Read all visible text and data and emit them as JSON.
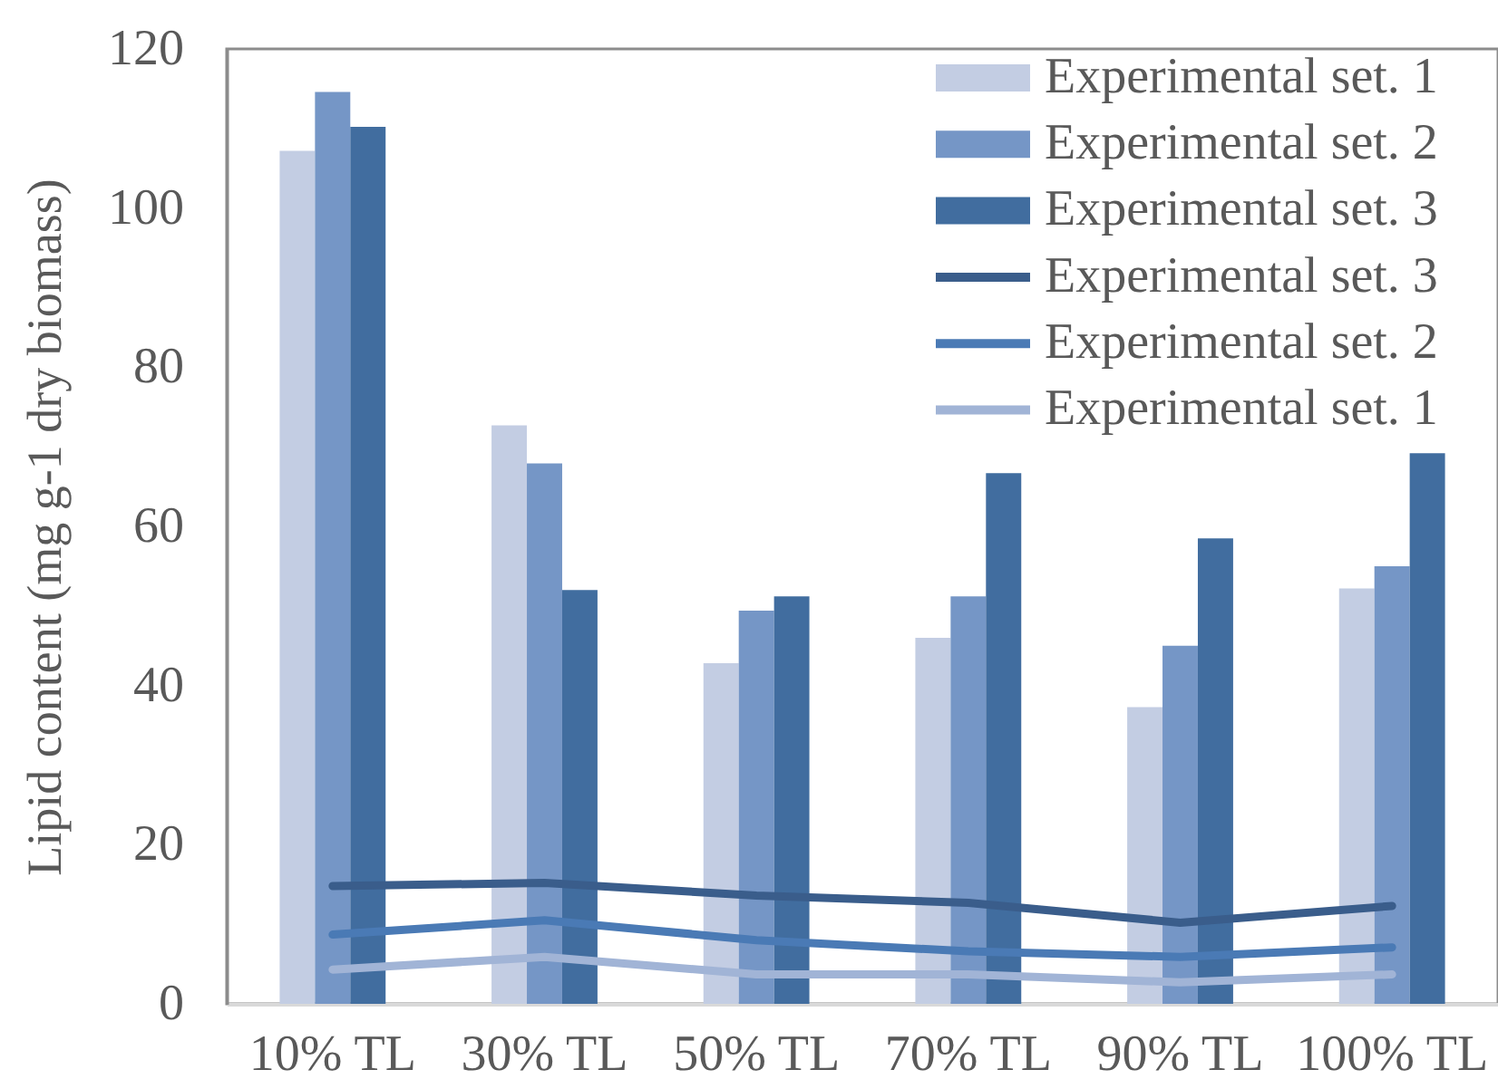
{
  "chart_data": {
    "type": "bar",
    "ylabel": "Lipid content (mg g-1 dry biomass)",
    "categories": [
      "10% TL",
      "30% TL",
      "50% TL",
      "70% TL",
      "90% TL",
      "100% TL"
    ],
    "series": [
      {
        "name": "Experimental set. 1",
        "color": "#c3cde3",
        "values": [
          107.2,
          72.7,
          42.8,
          46.0,
          37.3,
          52.2
        ]
      },
      {
        "name": "Experimental set. 2",
        "color": "#7596c6",
        "values": [
          114.6,
          67.9,
          49.4,
          51.2,
          45.0,
          55.0
        ]
      },
      {
        "name": "Experimental set. 3",
        "color": "#416d9f",
        "values": [
          110.2,
          52.0,
          51.2,
          66.7,
          58.5,
          69.2
        ]
      },
      {
        "type": "line",
        "name": "Experimental set. 3",
        "color": "#3a5d8b",
        "values": [
          14.8,
          15.2,
          13.6,
          12.7,
          10.2,
          12.3
        ]
      },
      {
        "type": "line",
        "name": "Experimental set. 2",
        "color": "#4a7ab5",
        "values": [
          8.7,
          10.5,
          8.0,
          6.6,
          5.9,
          7.1
        ]
      },
      {
        "type": "line",
        "name": "Experimental set. 1",
        "color": "#a1b4d6",
        "values": [
          4.3,
          5.9,
          3.7,
          3.7,
          2.7,
          3.7
        ]
      }
    ],
    "ylim": [
      0,
      120
    ],
    "yticks": [
      0,
      20,
      40,
      60,
      80,
      100,
      120
    ],
    "legend": "top right"
  }
}
